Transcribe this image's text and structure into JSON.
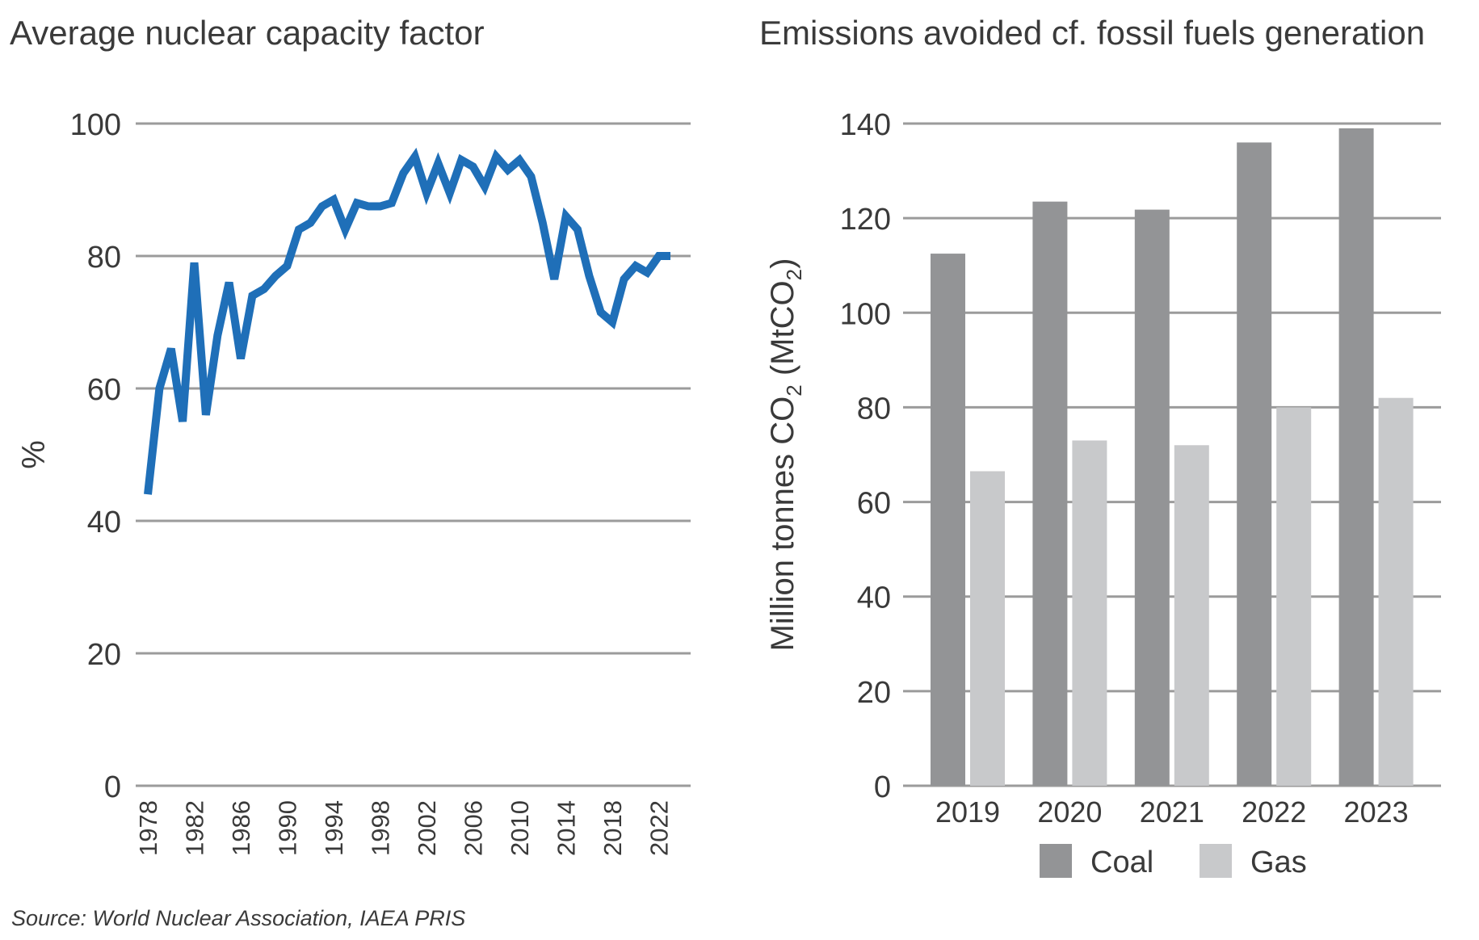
{
  "source": "Source: World Nuclear Association, IAEA PRIS",
  "chart_data": [
    {
      "type": "line",
      "title": "Average nuclear capacity factor",
      "ylabel": "%",
      "xlabel": "",
      "ylim": [
        0,
        100
      ],
      "yticks": [
        "0",
        "20",
        "40",
        "60",
        "80",
        "100"
      ],
      "xlim": [
        1978,
        2023
      ],
      "xticks": [
        "1978",
        "1982",
        "1986",
        "1990",
        "1994",
        "1998",
        "2002",
        "2006",
        "2010",
        "2014",
        "2018",
        "2022"
      ],
      "grid": true,
      "color": "#1f6fb8",
      "series": [
        {
          "x": [
            1978,
            1979,
            1980,
            1981,
            1982,
            1983,
            1984,
            1985,
            1986,
            1987,
            1988,
            1989,
            1990,
            1991,
            1992,
            1993,
            1994,
            1995,
            1996,
            1997,
            1998,
            1999,
            2000,
            2001,
            2002,
            2003,
            2004,
            2005,
            2006,
            2007,
            2008,
            2009,
            2010,
            2011,
            2012,
            2013,
            2014,
            2015,
            2016,
            2017,
            2018,
            2019,
            2020,
            2021,
            2022,
            2023
          ],
          "y": [
            44,
            60,
            66,
            55,
            79,
            56,
            68,
            76,
            64.5,
            74,
            75,
            77,
            78.5,
            84,
            85,
            87.5,
            88.5,
            84,
            88,
            87.5,
            87.5,
            88,
            92.5,
            95,
            89.5,
            94,
            89.5,
            94.5,
            93.5,
            90.5,
            95,
            93,
            94.5,
            92,
            85,
            76.5,
            86,
            84,
            77,
            71.5,
            70,
            76.5,
            78.5,
            77.5,
            80,
            80
          ]
        }
      ]
    },
    {
      "type": "bar",
      "title": "Emissions avoided cf. fossil fuels generation",
      "ylabel_parts": [
        "Million tonnes CO",
        "2",
        " (MtCO",
        "2",
        ")"
      ],
      "xlabel": "",
      "ylim": [
        0,
        140
      ],
      "yticks": [
        "0",
        "20",
        "40",
        "60",
        "80",
        "100",
        "120",
        "140"
      ],
      "categories": [
        "2019",
        "2020",
        "2021",
        "2022",
        "2023"
      ],
      "grid": true,
      "legend_position": "bottom",
      "series": [
        {
          "name": "Coal",
          "color": "#939496",
          "values": [
            112.5,
            123.5,
            121.8,
            136,
            139
          ]
        },
        {
          "name": "Gas",
          "color": "#c8c9cb",
          "values": [
            66.5,
            73,
            72,
            80,
            82
          ]
        }
      ]
    }
  ]
}
